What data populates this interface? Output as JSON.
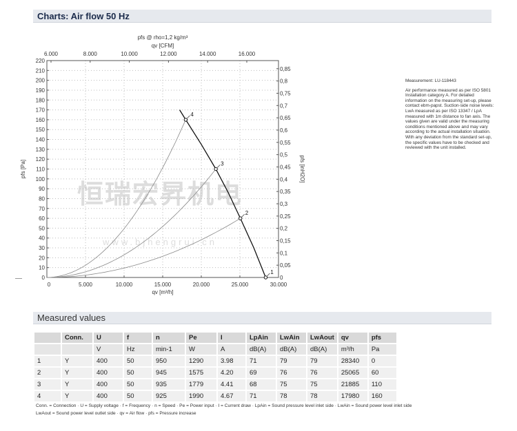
{
  "header": {
    "title": "Charts: Air flow 50 Hz"
  },
  "chart_data": {
    "type": "line",
    "title": "pfs @ rho=1,2 kg/m³",
    "top_axis_label": "qv [CFM]",
    "top_ticks": [
      "6.000",
      "8.000",
      "10.000",
      "12.000",
      "14.000",
      "16.000"
    ],
    "xlabel": "qv [m³/h]",
    "xlim": [
      0,
      30000
    ],
    "x_ticks": [
      "0",
      "5.000",
      "10.000",
      "15.000",
      "20.000",
      "25.000",
      "30.000"
    ],
    "ylabel": "pfs [Pa]",
    "ylim": [
      0,
      220
    ],
    "y_ticks": [
      "0",
      "10",
      "20",
      "30",
      "40",
      "50",
      "60",
      "70",
      "80",
      "90",
      "100",
      "110",
      "120",
      "130",
      "140",
      "150",
      "160",
      "170",
      "180",
      "190",
      "200",
      "210",
      "220"
    ],
    "y2label": "pfs [inH2O]",
    "y2_ticks": [
      "0",
      "0,05",
      "0,1",
      "0,15",
      "0,2",
      "0,25",
      "0,3",
      "0,35",
      "0,4",
      "0,45",
      "0,5",
      "0,55",
      "0,6",
      "0,65",
      "0,7",
      "0,75",
      "0,8",
      "0,85"
    ],
    "grid": true,
    "fan_curve": {
      "x": [
        17200,
        17980,
        20000,
        21885,
        23500,
        25065,
        26800,
        28340
      ],
      "y": [
        170,
        160,
        135,
        110,
        86,
        60,
        30,
        0
      ]
    },
    "operating_points": [
      {
        "label": "1",
        "x": 28340,
        "y": 0
      },
      {
        "label": "2",
        "x": 25065,
        "y": 60
      },
      {
        "label": "3",
        "x": 21885,
        "y": 110
      },
      {
        "label": "4",
        "x": 17980,
        "y": 160
      }
    ],
    "system_curves": "parabolas through origin and points 2, 3, 4",
    "colors": {
      "curve": "#111111",
      "system": "#888888",
      "grid": "#bbbbbb"
    }
  },
  "watermark": {
    "cn": "恒瑞宏昇机电",
    "url": "www.bjhengrui.cn"
  },
  "note": {
    "measurement": "Measurement: LU-118443",
    "text": "Air performance measured as per ISO 5801 Installation category A. For detailed information on the measuring set-up, please contact ebm-papst. Suction-side noise levels: LwA measured as per ISO 13347 / LpA measured with 1m distance to fan axis. The values given are valid under the measuring conditions mentioned above and may vary according to the actual installation situation. With any deviation from the standard set-up, the specific values have to be checked and reviewed with the unit installed."
  },
  "measured": {
    "title": "Measured values",
    "headers": [
      "",
      "Conn.",
      "U",
      "f",
      "n",
      "Pe",
      "I",
      "LpAin",
      "LwAin",
      "LwAout",
      "qv",
      "pfs"
    ],
    "units": [
      "",
      "",
      "V",
      "Hz",
      "min-1",
      "W",
      "A",
      "dB(A)",
      "dB(A)",
      "dB(A)",
      "m³/h",
      "Pa"
    ],
    "rows": [
      [
        "1",
        "Y",
        "400",
        "50",
        "950",
        "1290",
        "3.98",
        "71",
        "79",
        "79",
        "28340",
        "0"
      ],
      [
        "2",
        "Y",
        "400",
        "50",
        "945",
        "1575",
        "4.20",
        "69",
        "76",
        "76",
        "25065",
        "60"
      ],
      [
        "3",
        "Y",
        "400",
        "50",
        "935",
        "1779",
        "4.41",
        "68",
        "75",
        "75",
        "21885",
        "110"
      ],
      [
        "4",
        "Y",
        "400",
        "50",
        "925",
        "1990",
        "4.67",
        "71",
        "78",
        "78",
        "17980",
        "160"
      ]
    ],
    "legend1": "Conn. = Connection · U = Supply voltage · f = Frequency · n = Speed · Pe = Power input · I = Current draw · LpAin = Sound pressure level inlet side · LwAin = Sound power level inlet side",
    "legend2": "LwAout = Sound power level outlet side · qv = Air flow · pfs = Pressure increase"
  }
}
